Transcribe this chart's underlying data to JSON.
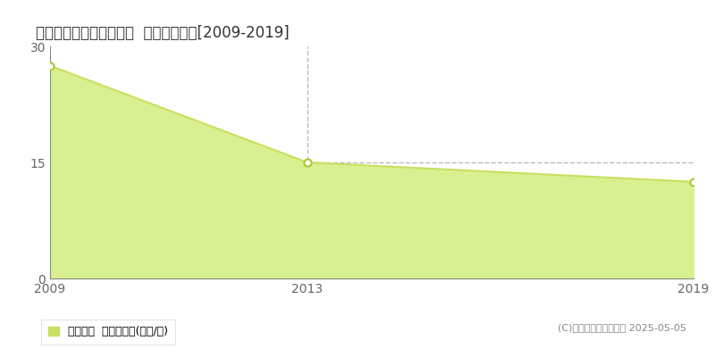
{
  "title": "仲多度郡多度津町西港町  住宅価格推移[2009-2019]",
  "years": [
    2009,
    2013,
    2019
  ],
  "values": [
    27.5,
    15.0,
    12.5
  ],
  "line_color": "#c8e060",
  "fill_color": "#d8f090",
  "marker_color": "#ffffff",
  "marker_edge_color": "#aac830",
  "bg_color": "#ffffff",
  "yticks": [
    0,
    15,
    30
  ],
  "xlim": [
    2009,
    2019
  ],
  "ylim": [
    0,
    30
  ],
  "grid_color": "#bbbbbb",
  "vline_x": 2013,
  "copyright": "(C)土地価格ドットコム 2025-05-05",
  "legend_label": "住宅価格  平均坤単価(万円/坤)",
  "legend_color": "#c8e060",
  "spine_color": "#888888",
  "tick_color": "#666666"
}
